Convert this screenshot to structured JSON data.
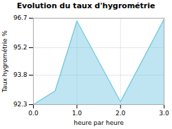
{
  "chart_data": {
    "type": "area",
    "title": "Evolution du taux d'hygrométrie",
    "xlabel": "heure par heure",
    "ylabel": "Taux hygrométrie %",
    "x": [
      0,
      0.5,
      1,
      2,
      3
    ],
    "values": [
      92.3,
      93.0,
      96.55,
      92.45,
      96.65
    ],
    "xlim": [
      0,
      3
    ],
    "ylim": [
      92.3,
      96.7
    ],
    "xticks": [
      0,
      1,
      2,
      3
    ],
    "yticks": [
      92.3,
      93.8,
      95.2,
      96.7
    ],
    "grid": true,
    "color": "#6ec6e0"
  }
}
